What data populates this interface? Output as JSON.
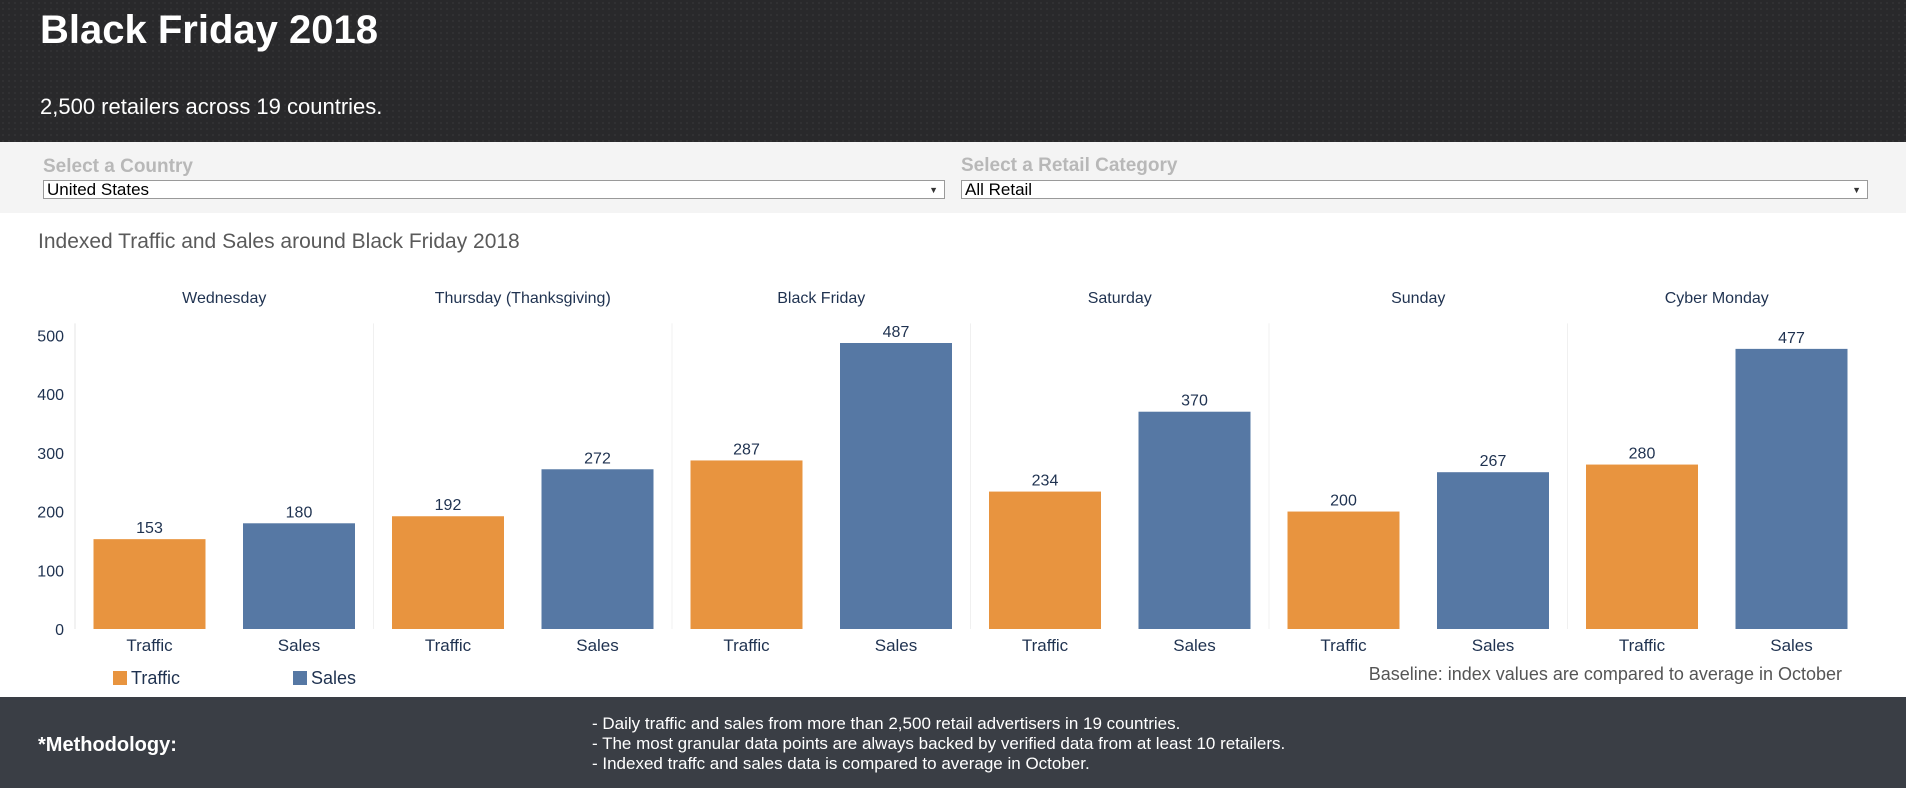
{
  "header": {
    "title": "Black Friday 2018",
    "subtitle": "2,500 retailers across 19 countries."
  },
  "filters": {
    "country": {
      "label": "Select a Country",
      "value": "United States"
    },
    "category": {
      "label": "Select a Retail Category",
      "value": "All Retail"
    }
  },
  "legend": {
    "traffic": "Traffic",
    "sales": "Sales"
  },
  "baseline_note": "Baseline: index values are compared to average in October",
  "methodology": {
    "label": "*Methodology:",
    "notes": [
      "- Daily traffic and sales from more than 2,500 retail advertisers in 19 countries.",
      "- The most granular data points are always backed by verified data from at least 10 retailers.",
      "- Indexed traffc and sales data is compared to average in October."
    ]
  },
  "colors": {
    "traffic": "#e8943f",
    "sales": "#5678a4",
    "header_bg": "#29292b",
    "footer_bg": "#3a3e45"
  },
  "chart_data": {
    "type": "bar",
    "title": "Indexed Traffic and Sales around Black Friday 2018",
    "categories": [
      "Wednesday",
      "Thursday (Thanksgiving)",
      "Black Friday",
      "Saturday",
      "Sunday",
      "Cyber Monday"
    ],
    "sub_categories": [
      "Traffic",
      "Sales"
    ],
    "series": [
      {
        "name": "Traffic",
        "values": [
          153,
          192,
          287,
          234,
          200,
          280
        ]
      },
      {
        "name": "Sales",
        "values": [
          180,
          272,
          487,
          370,
          267,
          477
        ]
      }
    ],
    "yticks": [
      0,
      100,
      200,
      300,
      400,
      500
    ],
    "ylim": [
      0,
      500
    ],
    "grid": false,
    "legend_position": "bottom-left"
  }
}
